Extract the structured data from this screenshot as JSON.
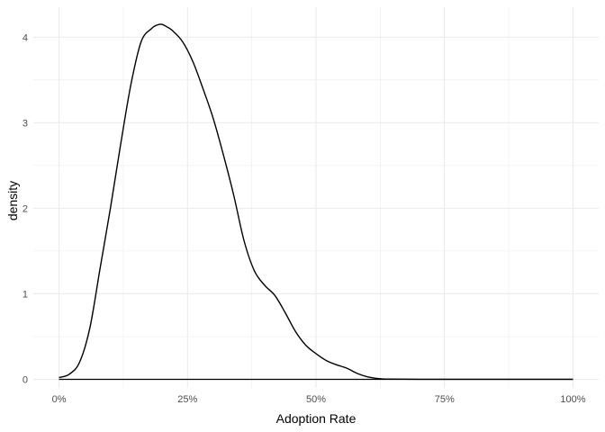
{
  "chart_data": {
    "type": "area",
    "title": "",
    "xlabel": "Adoption Rate",
    "ylabel": "density",
    "xlim": [
      -0.05,
      1.05
    ],
    "ylim": [
      -0.1,
      4.35
    ],
    "x_ticks": [
      0,
      0.25,
      0.5,
      0.75,
      1.0
    ],
    "x_tick_labels": [
      "0%",
      "25%",
      "50%",
      "75%",
      "100%"
    ],
    "y_ticks": [
      0,
      1,
      2,
      3,
      4
    ],
    "y_tick_labels": [
      "0",
      "1",
      "2",
      "3",
      "4"
    ],
    "grid": true,
    "legend": "none",
    "line_color": "#000000",
    "grid_color": "#ebebeb",
    "series": [
      {
        "x": [
          0.0,
          0.02,
          0.04,
          0.06,
          0.08,
          0.1,
          0.12,
          0.14,
          0.16,
          0.18,
          0.19,
          0.2,
          0.21,
          0.22,
          0.24,
          0.26,
          0.28,
          0.3,
          0.32,
          0.34,
          0.36,
          0.38,
          0.4,
          0.42,
          0.44,
          0.46,
          0.48,
          0.5,
          0.52,
          0.54,
          0.56,
          0.58,
          0.6,
          0.62,
          0.64,
          0.7,
          0.8,
          0.9,
          1.0
        ],
        "y": [
          0.02,
          0.06,
          0.2,
          0.6,
          1.3,
          2.0,
          2.75,
          3.45,
          3.95,
          4.1,
          4.14,
          4.15,
          4.12,
          4.08,
          3.95,
          3.72,
          3.4,
          3.05,
          2.62,
          2.15,
          1.62,
          1.27,
          1.1,
          0.98,
          0.78,
          0.56,
          0.4,
          0.3,
          0.22,
          0.17,
          0.13,
          0.07,
          0.03,
          0.01,
          0.003,
          0.001,
          0.0005,
          0.0002,
          0.0001
        ]
      }
    ]
  }
}
